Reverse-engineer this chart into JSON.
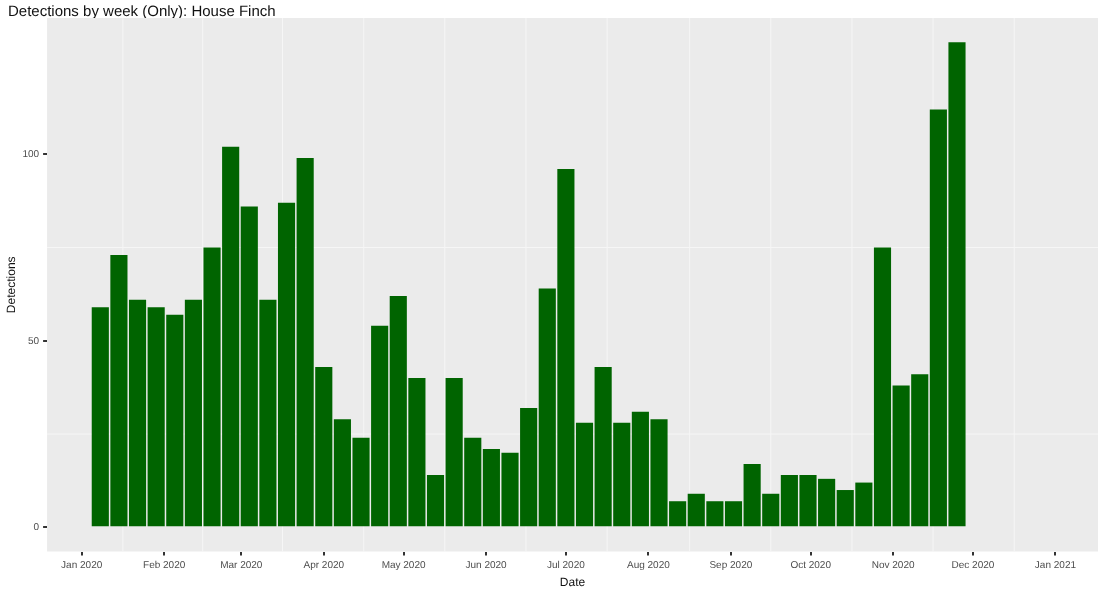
{
  "chart_data": {
    "type": "bar",
    "title": "Detections by week (Only): House Finch",
    "xlabel": "Date",
    "ylabel": "Detections",
    "x": [
      "2020-01-08",
      "2020-01-15",
      "2020-01-22",
      "2020-01-29",
      "2020-02-05",
      "2020-02-12",
      "2020-02-19",
      "2020-02-26",
      "2020-03-04",
      "2020-03-11",
      "2020-03-18",
      "2020-03-25",
      "2020-04-01",
      "2020-04-08",
      "2020-04-15",
      "2020-04-22",
      "2020-04-29",
      "2020-05-06",
      "2020-05-13",
      "2020-05-20",
      "2020-05-27",
      "2020-06-03",
      "2020-06-10",
      "2020-06-17",
      "2020-06-24",
      "2020-07-01",
      "2020-07-08",
      "2020-07-15",
      "2020-07-22",
      "2020-07-29",
      "2020-08-05",
      "2020-08-12",
      "2020-08-19",
      "2020-08-26",
      "2020-09-02",
      "2020-09-09",
      "2020-09-16",
      "2020-09-23",
      "2020-09-30",
      "2020-10-07",
      "2020-10-14",
      "2020-10-21",
      "2020-10-28",
      "2020-11-04",
      "2020-11-11",
      "2020-11-18",
      "2020-11-25"
    ],
    "values": [
      59,
      73,
      61,
      59,
      57,
      61,
      75,
      102,
      86,
      61,
      87,
      99,
      43,
      29,
      24,
      54,
      62,
      40,
      14,
      40,
      24,
      21,
      20,
      32,
      64,
      96,
      28,
      43,
      28,
      31,
      29,
      7,
      9,
      7,
      7,
      17,
      9,
      14,
      14,
      13,
      10,
      12,
      75,
      38,
      41,
      112,
      130
    ],
    "color": "#006400",
    "xlim": [
      "2019-12-19",
      "2021-01-17"
    ],
    "xticks": [
      {
        "value": "2020-01-01",
        "label": "Jan 2020"
      },
      {
        "value": "2020-02-01",
        "label": "Feb 2020"
      },
      {
        "value": "2020-03-01",
        "label": "Mar 2020"
      },
      {
        "value": "2020-04-01",
        "label": "Apr 2020"
      },
      {
        "value": "2020-05-01",
        "label": "May 2020"
      },
      {
        "value": "2020-06-01",
        "label": "Jun 2020"
      },
      {
        "value": "2020-07-01",
        "label": "Jul 2020"
      },
      {
        "value": "2020-08-01",
        "label": "Aug 2020"
      },
      {
        "value": "2020-09-01",
        "label": "Sep 2020"
      },
      {
        "value": "2020-10-01",
        "label": "Oct 2020"
      },
      {
        "value": "2020-11-01",
        "label": "Nov 2020"
      },
      {
        "value": "2020-12-01",
        "label": "Dec 2020"
      },
      {
        "value": "2021-01-01",
        "label": "Jan 2021"
      }
    ],
    "ylim": [
      -6.5,
      136.5
    ],
    "yticks": [
      0,
      50,
      100
    ],
    "grid": true,
    "legend": false
  }
}
